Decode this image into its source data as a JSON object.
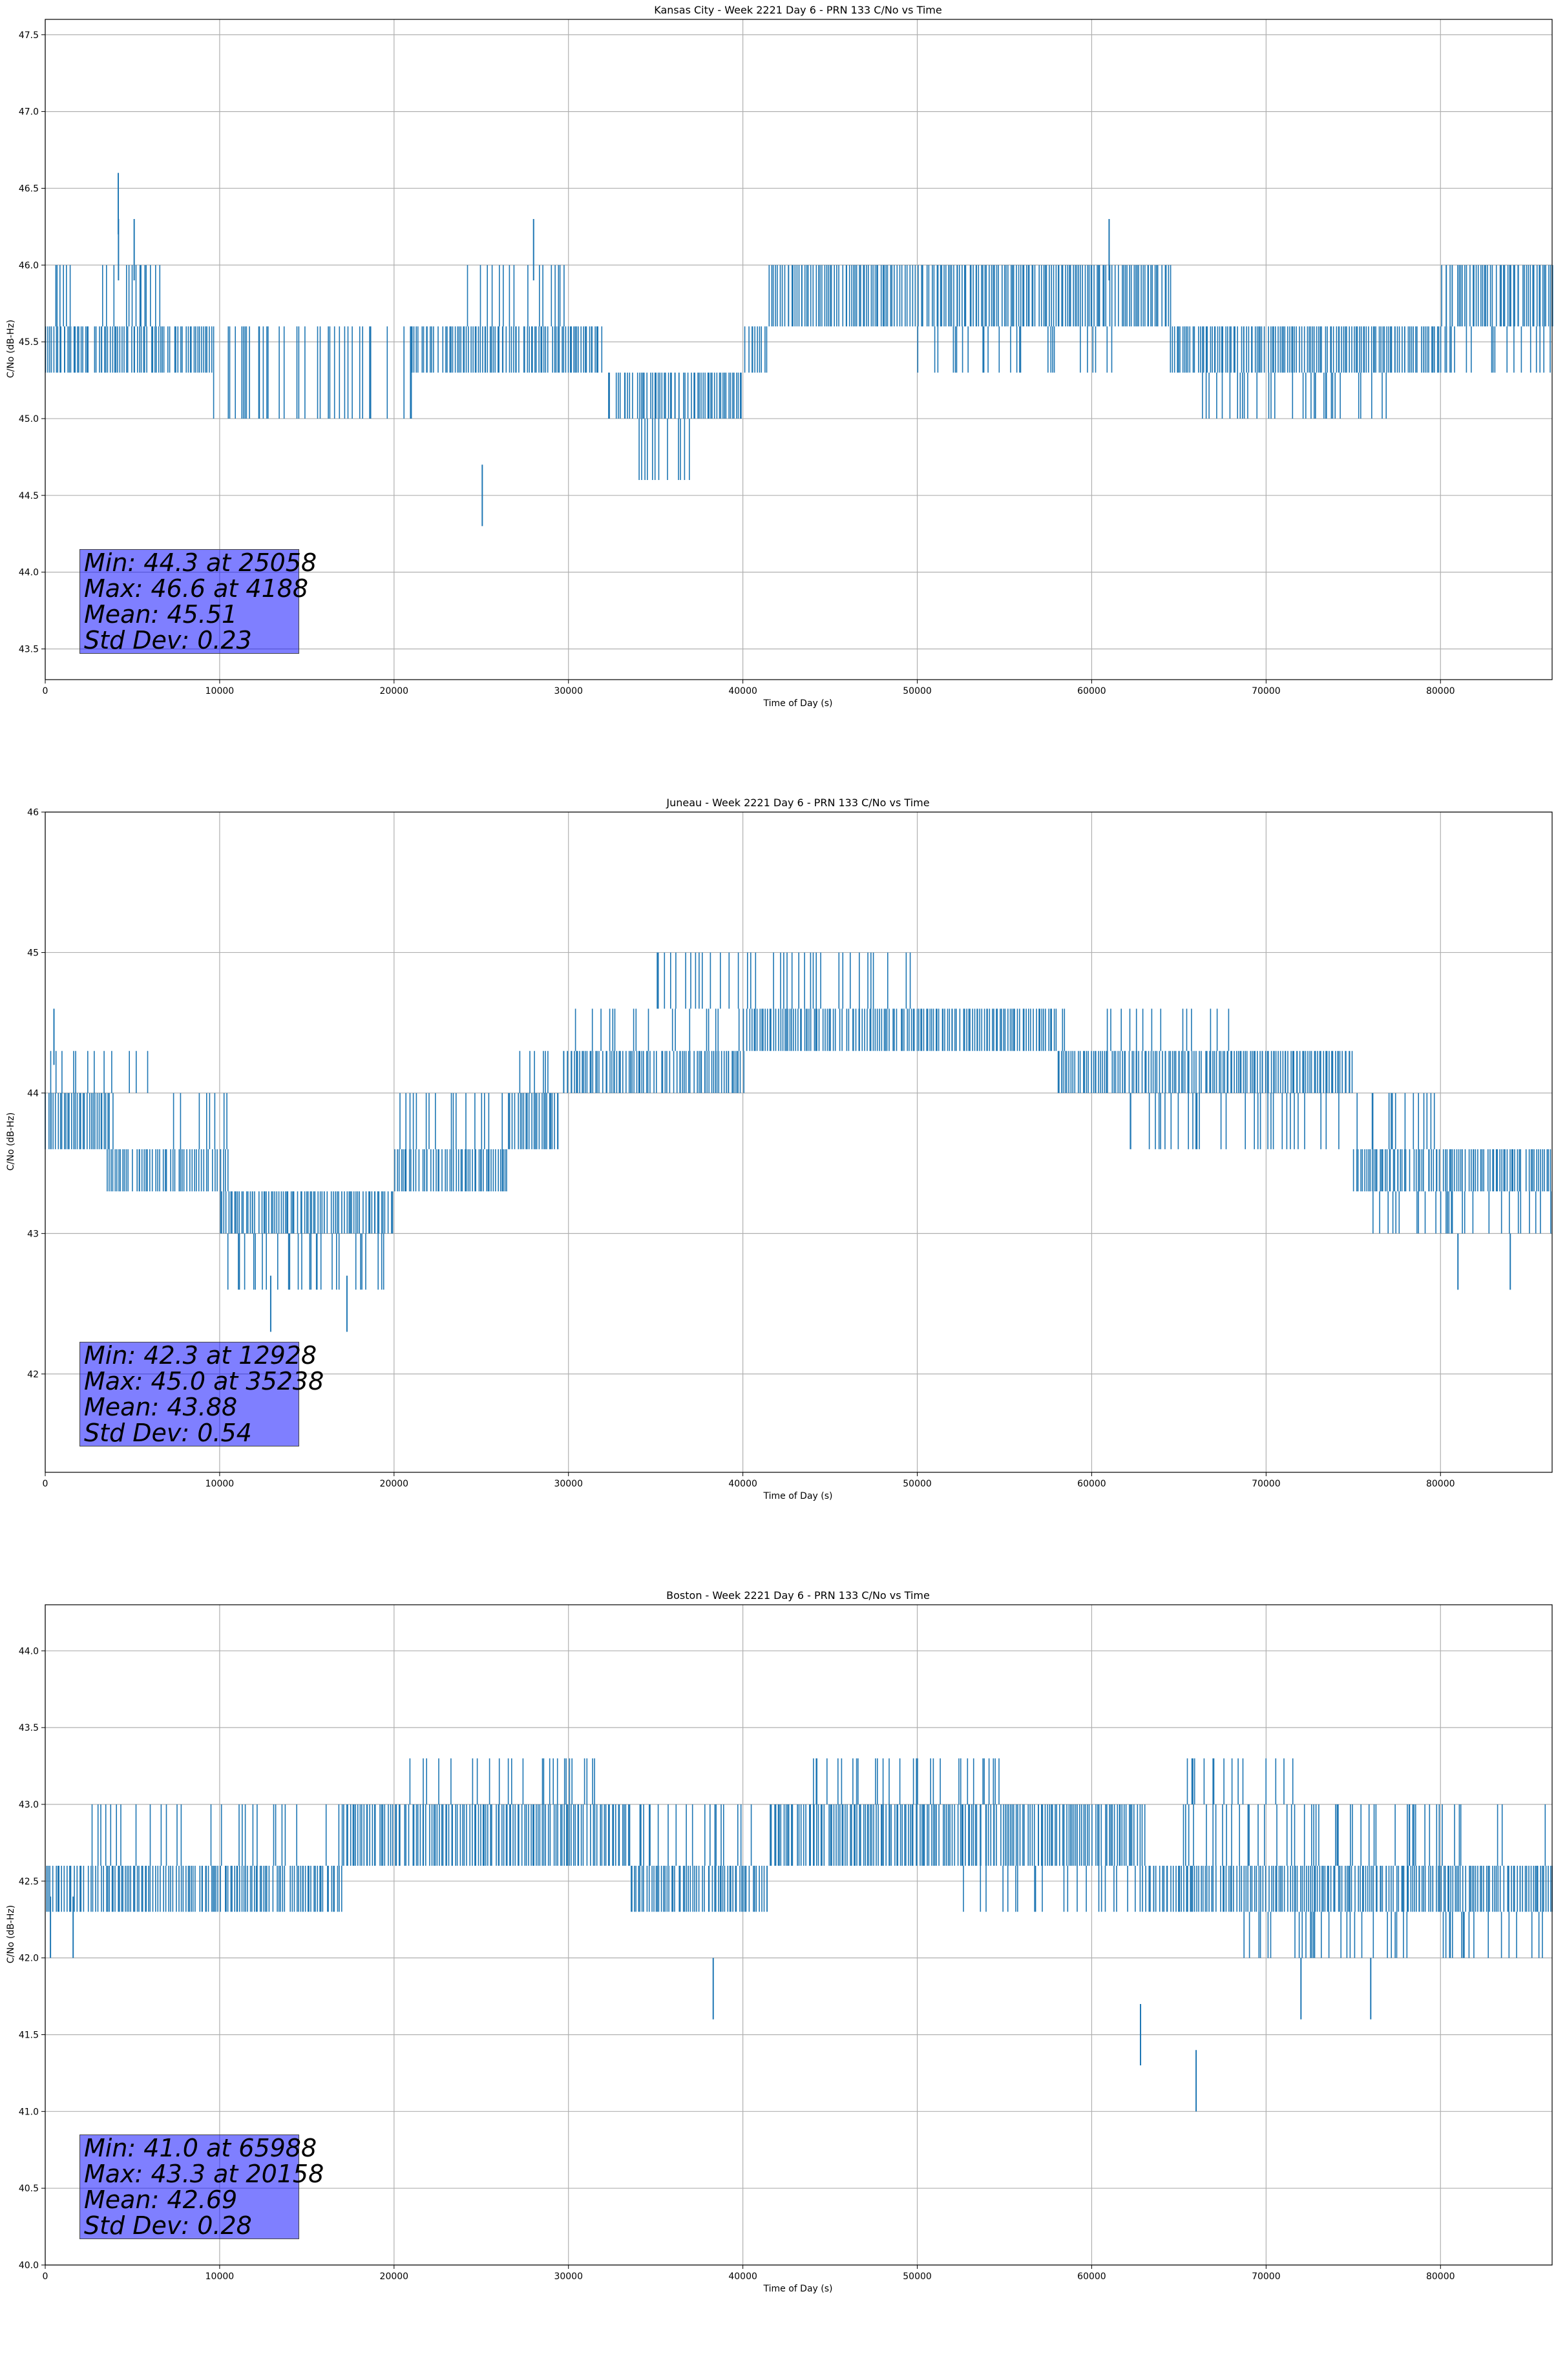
{
  "colors": {
    "series": "#1f77b4",
    "grid": "#b0b0b0",
    "stats_box": "#8080ff"
  },
  "chart_data": [
    {
      "type": "line",
      "title": "Kansas City - Week 2221 Day 6 - PRN 133 C/No vs Time",
      "xlabel": "Time of Day (s)",
      "ylabel": "C/No (dB-Hz)",
      "xlim": [
        0,
        86400
      ],
      "ylim": [
        43.3,
        47.6
      ],
      "xticks": [
        0,
        10000,
        20000,
        30000,
        40000,
        50000,
        60000,
        70000,
        80000
      ],
      "xtick_labels": [
        "0",
        "10000",
        "20000",
        "30000",
        "40000",
        "50000",
        "60000",
        "70000",
        "80000"
      ],
      "yticks": [
        43.5,
        44.0,
        44.5,
        45.0,
        45.5,
        46.0,
        46.5,
        47.0,
        47.5
      ],
      "ytick_labels": [
        "43.5",
        "44.0",
        "44.5",
        "45.0",
        "45.5",
        "46.0",
        "46.5",
        "47.0",
        "47.5"
      ],
      "grid": true,
      "series": [
        {
          "color": "#1f77b4",
          "band_segments": [
            {
              "x": [
                0,
                9500
              ],
              "lo": 45.3,
              "hi": 45.6,
              "dense": true
            },
            {
              "x": [
                0,
                7200
              ],
              "lo": 45.6,
              "hi": 46.0,
              "dense": false
            },
            {
              "x": [
                9500,
                21000
              ],
              "lo": 45.0,
              "hi": 45.6,
              "dense": false
            },
            {
              "x": [
                21000,
                32000
              ],
              "lo": 45.3,
              "hi": 45.6,
              "dense": true
            },
            {
              "x": [
                23500,
                30500
              ],
              "lo": 45.6,
              "hi": 46.0,
              "dense": false
            },
            {
              "x": [
                32000,
                40000
              ],
              "lo": 45.0,
              "hi": 45.3,
              "dense": true
            },
            {
              "x": [
                33500,
                37000
              ],
              "lo": 44.6,
              "hi": 45.0,
              "dense": false
            },
            {
              "x": [
                40000,
                41500
              ],
              "lo": 45.3,
              "hi": 45.6,
              "dense": true
            },
            {
              "x": [
                41500,
                58000
              ],
              "lo": 45.6,
              "hi": 46.0,
              "dense": true
            },
            {
              "x": [
                50000,
                62000
              ],
              "lo": 45.3,
              "hi": 45.6,
              "dense": false
            },
            {
              "x": [
                58000,
                64500
              ],
              "lo": 45.6,
              "hi": 46.0,
              "dense": true
            },
            {
              "x": [
                64500,
                80000
              ],
              "lo": 45.3,
              "hi": 45.6,
              "dense": true
            },
            {
              "x": [
                66000,
                77000
              ],
              "lo": 45.0,
              "hi": 45.3,
              "dense": false
            },
            {
              "x": [
                80000,
                86400
              ],
              "lo": 45.6,
              "hi": 46.0,
              "dense": true
            },
            {
              "x": [
                80000,
                86400
              ],
              "lo": 45.3,
              "hi": 45.6,
              "dense": false
            }
          ],
          "spikes": [
            [
              4188,
              46.6
            ],
            [
              4200,
              46.3
            ],
            [
              5100,
              46.3
            ],
            [
              25058,
              44.3
            ],
            [
              28000,
              46.3
            ],
            [
              61000,
              46.3
            ]
          ]
        }
      ],
      "stats": [
        "Min: 44.3 at 25058",
        "Max: 46.6 at 4188",
        "Mean: 45.51",
        "Std Dev: 0.23"
      ]
    },
    {
      "type": "line",
      "title": "Juneau - Week 2221 Day 6 - PRN 133 C/No vs Time",
      "xlabel": "Time of Day (s)",
      "ylabel": "C/No (dB-Hz)",
      "xlim": [
        0,
        86400
      ],
      "ylim": [
        41.3,
        46.0
      ],
      "xticks": [
        0,
        10000,
        20000,
        30000,
        40000,
        50000,
        60000,
        70000,
        80000
      ],
      "xtick_labels": [
        "0",
        "10000",
        "20000",
        "30000",
        "40000",
        "50000",
        "60000",
        "70000",
        "80000"
      ],
      "yticks": [
        42,
        43,
        44,
        45,
        46
      ],
      "ytick_labels": [
        "42",
        "43",
        "44",
        "45",
        "46"
      ],
      "grid": true,
      "series": [
        {
          "color": "#1f77b4",
          "band_segments": [
            {
              "x": [
                0,
                3800
              ],
              "lo": 43.6,
              "hi": 44.0,
              "dense": true
            },
            {
              "x": [
                0,
                6000
              ],
              "lo": 44.0,
              "hi": 44.3,
              "dense": false
            },
            {
              "x": [
                3500,
                10500
              ],
              "lo": 43.3,
              "hi": 43.6,
              "dense": true
            },
            {
              "x": [
                7000,
                10500
              ],
              "lo": 43.6,
              "hi": 44.0,
              "dense": false
            },
            {
              "x": [
                10000,
                20000
              ],
              "lo": 43.0,
              "hi": 43.3,
              "dense": true
            },
            {
              "x": [
                10000,
                20000
              ],
              "lo": 42.6,
              "hi": 43.0,
              "dense": false
            },
            {
              "x": [
                20000,
                26500
              ],
              "lo": 43.3,
              "hi": 43.6,
              "dense": true
            },
            {
              "x": [
                20000,
                26500
              ],
              "lo": 43.6,
              "hi": 44.0,
              "dense": false
            },
            {
              "x": [
                26500,
                29500
              ],
              "lo": 43.6,
              "hi": 44.0,
              "dense": true
            },
            {
              "x": [
                27000,
                29500
              ],
              "lo": 44.0,
              "hi": 44.3,
              "dense": false
            },
            {
              "x": [
                29500,
                40000
              ],
              "lo": 44.0,
              "hi": 44.3,
              "dense": true
            },
            {
              "x": [
                30000,
                40000
              ],
              "lo": 44.3,
              "hi": 44.6,
              "dense": false
            },
            {
              "x": [
                40000,
                58000
              ],
              "lo": 44.3,
              "hi": 44.6,
              "dense": true
            },
            {
              "x": [
                35000,
                50000
              ],
              "lo": 44.6,
              "hi": 45.0,
              "dense": false
            },
            {
              "x": [
                58000,
                75000
              ],
              "lo": 44.0,
              "hi": 44.3,
              "dense": true
            },
            {
              "x": [
                58000,
                68000
              ],
              "lo": 44.3,
              "hi": 44.6,
              "dense": false
            },
            {
              "x": [
                62000,
                75000
              ],
              "lo": 43.6,
              "hi": 44.0,
              "dense": false
            },
            {
              "x": [
                75000,
                80000
              ],
              "lo": 43.6,
              "hi": 44.0,
              "dense": false
            },
            {
              "x": [
                75000,
                86400
              ],
              "lo": 43.3,
              "hi": 43.6,
              "dense": true
            },
            {
              "x": [
                76000,
                86400
              ],
              "lo": 43.0,
              "hi": 43.3,
              "dense": false
            }
          ],
          "spikes": [
            [
              500,
              44.6
            ],
            [
              12928,
              42.3
            ],
            [
              17300,
              42.3
            ],
            [
              81000,
              42.6
            ],
            [
              84000,
              42.6
            ]
          ]
        }
      ],
      "stats": [
        "Min: 42.3 at 12928",
        "Max: 45.0 at 35238",
        "Mean: 43.88",
        "Std Dev: 0.54"
      ]
    },
    {
      "type": "line",
      "title": "Boston - Week 2221 Day 6 - PRN 133 C/No vs Time",
      "xlabel": "Time of Day (s)",
      "ylabel": "C/No (dB-Hz)",
      "xlim": [
        0,
        86400
      ],
      "ylim": [
        40.0,
        44.3
      ],
      "xticks": [
        0,
        10000,
        20000,
        30000,
        40000,
        50000,
        60000,
        70000,
        80000
      ],
      "xtick_labels": [
        "0",
        "10000",
        "20000",
        "30000",
        "40000",
        "50000",
        "60000",
        "70000",
        "80000"
      ],
      "yticks": [
        40.0,
        40.5,
        41.0,
        41.5,
        42.0,
        42.5,
        43.0,
        43.5,
        44.0
      ],
      "ytick_labels": [
        "40.0",
        "40.5",
        "41.0",
        "41.5",
        "42.0",
        "42.5",
        "43.0",
        "43.5",
        "44.0"
      ],
      "grid": true,
      "series": [
        {
          "color": "#1f77b4",
          "band_segments": [
            {
              "x": [
                0,
                17000
              ],
              "lo": 42.3,
              "hi": 42.6,
              "dense": true
            },
            {
              "x": [
                2000,
                17000
              ],
              "lo": 42.6,
              "hi": 43.0,
              "dense": false
            },
            {
              "x": [
                17000,
                33500
              ],
              "lo": 42.6,
              "hi": 43.0,
              "dense": true
            },
            {
              "x": [
                20000,
                31500
              ],
              "lo": 43.0,
              "hi": 43.3,
              "dense": false
            },
            {
              "x": [
                33500,
                41500
              ],
              "lo": 42.3,
              "hi": 42.6,
              "dense": true
            },
            {
              "x": [
                34000,
                41000
              ],
              "lo": 42.6,
              "hi": 43.0,
              "dense": false
            },
            {
              "x": [
                41500,
                63000
              ],
              "lo": 42.6,
              "hi": 43.0,
              "dense": true
            },
            {
              "x": [
                44000,
                55000
              ],
              "lo": 43.0,
              "hi": 43.3,
              "dense": false
            },
            {
              "x": [
                52000,
                63000
              ],
              "lo": 42.3,
              "hi": 42.6,
              "dense": false
            },
            {
              "x": [
                63000,
                86400
              ],
              "lo": 42.3,
              "hi": 42.6,
              "dense": true
            },
            {
              "x": [
                65000,
                86400
              ],
              "lo": 42.6,
              "hi": 43.0,
              "dense": false
            },
            {
              "x": [
                65000,
                72000
              ],
              "lo": 43.0,
              "hi": 43.3,
              "dense": false
            },
            {
              "x": [
                68000,
                86400
              ],
              "lo": 42.0,
              "hi": 42.3,
              "dense": false
            }
          ],
          "spikes": [
            [
              300,
              42.0
            ],
            [
              1600,
              42.0
            ],
            [
              38300,
              41.6
            ],
            [
              62800,
              41.3
            ],
            [
              65988,
              41.0
            ],
            [
              72000,
              41.6
            ],
            [
              76000,
              41.6
            ]
          ]
        }
      ],
      "stats": [
        "Min: 41.0 at 65988",
        "Max: 43.3 at 20158",
        "Mean: 42.69",
        "Std Dev: 0.28"
      ]
    }
  ]
}
